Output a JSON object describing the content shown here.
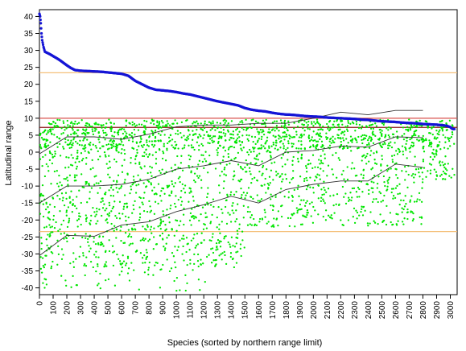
{
  "chart_data": {
    "type": "scatter",
    "xlabel": "Species (sorted by northern range limit)",
    "ylabel": "Latitudinal range",
    "xlim": [
      0,
      3050
    ],
    "ylim": [
      -42,
      42
    ],
    "x_ticks": [
      0,
      100,
      200,
      300,
      400,
      500,
      600,
      700,
      800,
      900,
      1000,
      1100,
      1200,
      1300,
      1400,
      1500,
      1600,
      1700,
      1800,
      1900,
      2000,
      2100,
      2200,
      2300,
      2400,
      2500,
      2600,
      2700,
      2800,
      2900,
      3000
    ],
    "y_ticks": [
      -40,
      -35,
      -30,
      -25,
      -20,
      -15,
      -10,
      -5,
      0,
      5,
      10,
      15,
      20,
      25,
      30,
      35,
      40
    ],
    "reference_lines": [
      {
        "y": 23.4,
        "color": "#f5c07a"
      },
      {
        "y": -23.4,
        "color": "#f5c07a"
      },
      {
        "y": 10,
        "color": "#d9534f"
      },
      {
        "y": 7.3,
        "color": "#8b1a1a"
      }
    ],
    "series": [
      {
        "color": "#1515d6",
        "kind": "northern-limit",
        "points": [
          [
            0,
            40.8
          ],
          [
            5,
            40
          ],
          [
            10,
            38
          ],
          [
            15,
            35
          ],
          [
            20,
            33
          ],
          [
            30,
            31
          ],
          [
            40,
            29.6
          ],
          [
            60,
            29.2
          ],
          [
            80,
            28.8
          ],
          [
            100,
            28.3
          ],
          [
            130,
            27.6
          ],
          [
            160,
            26.8
          ],
          [
            200,
            25.6
          ],
          [
            230,
            24.8
          ],
          [
            260,
            24.2
          ],
          [
            300,
            24
          ],
          [
            350,
            23.9
          ],
          [
            400,
            23.8
          ],
          [
            450,
            23.7
          ],
          [
            500,
            23.5
          ],
          [
            550,
            23.3
          ],
          [
            600,
            23.1
          ],
          [
            650,
            22.5
          ],
          [
            700,
            21
          ],
          [
            750,
            20
          ],
          [
            800,
            19
          ],
          [
            850,
            18.4
          ],
          [
            900,
            18.2
          ],
          [
            950,
            18
          ],
          [
            1000,
            17.7
          ],
          [
            1050,
            17.3
          ],
          [
            1100,
            17
          ],
          [
            1150,
            16.5
          ],
          [
            1200,
            16
          ],
          [
            1250,
            15.5
          ],
          [
            1300,
            15
          ],
          [
            1350,
            14.6
          ],
          [
            1400,
            14.2
          ],
          [
            1450,
            13.8
          ],
          [
            1500,
            13
          ],
          [
            1550,
            12.5
          ],
          [
            1600,
            12.2
          ],
          [
            1650,
            12
          ],
          [
            1700,
            11.6
          ],
          [
            1750,
            11.3
          ],
          [
            1800,
            11.1
          ],
          [
            1850,
            11
          ],
          [
            1900,
            10.8
          ],
          [
            1950,
            10.6
          ],
          [
            2000,
            10.5
          ],
          [
            2050,
            10.4
          ],
          [
            2100,
            10.2
          ],
          [
            2150,
            10.1
          ],
          [
            2200,
            10
          ],
          [
            2250,
            9.9
          ],
          [
            2300,
            9.8
          ],
          [
            2350,
            9.6
          ],
          [
            2400,
            9.5
          ],
          [
            2450,
            9.3
          ],
          [
            2500,
            9.1
          ],
          [
            2550,
            9
          ],
          [
            2600,
            8.9
          ],
          [
            2650,
            8.7
          ],
          [
            2700,
            8.6
          ],
          [
            2750,
            8.5
          ],
          [
            2800,
            8.3
          ],
          [
            2850,
            8.2
          ],
          [
            2900,
            8.1
          ],
          [
            2950,
            7.9
          ],
          [
            2980,
            7.7
          ],
          [
            3000,
            7.4
          ],
          [
            3010,
            7
          ],
          [
            3020,
            6.8
          ],
          [
            3030,
            6.8
          ]
        ]
      },
      {
        "color": "#00e600",
        "kind": "southern-limits-scatter",
        "bands": [
          {
            "from": 0,
            "to": 3030,
            "ymin": 1,
            "ymax": 9.6,
            "weight": 0.42
          },
          {
            "from": 0,
            "to": 3030,
            "ymin": -8,
            "ymax": 1,
            "weight": 0.18
          },
          {
            "from": 0,
            "to": 2800,
            "ymin": -22,
            "ymax": -8,
            "weight": 0.26
          },
          {
            "from": 0,
            "to": 1500,
            "ymin": -34,
            "ymax": -22,
            "weight": 0.12
          },
          {
            "from": 0,
            "to": 1300,
            "ymin": -41,
            "ymax": -34,
            "weight": 0.02
          }
        ]
      },
      {
        "color": "#333333",
        "kind": "quantile-lines",
        "lines": [
          [
            [
              0,
              -0.5
            ],
            [
              200,
              4.5
            ],
            [
              400,
              4.5
            ],
            [
              600,
              3.8
            ],
            [
              800,
              5.3
            ],
            [
              1000,
              7.5
            ],
            [
              1200,
              8
            ],
            [
              1400,
              8
            ],
            [
              1600,
              8.5
            ],
            [
              1800,
              8.5
            ],
            [
              2000,
              10
            ],
            [
              2200,
              11.8
            ],
            [
              2400,
              11
            ],
            [
              2600,
              12.3
            ],
            [
              2800,
              12.3
            ]
          ],
          [
            [
              0,
              -15
            ],
            [
              200,
              -10
            ],
            [
              400,
              -10
            ],
            [
              600,
              -9.5
            ],
            [
              800,
              -8
            ],
            [
              1000,
              -5
            ],
            [
              1200,
              -4
            ],
            [
              1400,
              -2.5
            ],
            [
              1600,
              -4
            ],
            [
              1800,
              0
            ],
            [
              2000,
              0.5
            ],
            [
              2200,
              1.8
            ],
            [
              2400,
              1.5
            ],
            [
              2600,
              4.5
            ],
            [
              2800,
              4.3
            ]
          ],
          [
            [
              0,
              -30.5
            ],
            [
              200,
              -24.5
            ],
            [
              400,
              -24.8
            ],
            [
              600,
              -21.5
            ],
            [
              800,
              -20.5
            ],
            [
              1000,
              -17.5
            ],
            [
              1200,
              -15.5
            ],
            [
              1400,
              -13
            ],
            [
              1600,
              -15
            ],
            [
              1800,
              -11
            ],
            [
              2000,
              -9.5
            ],
            [
              2200,
              -8.5
            ],
            [
              2400,
              -8.5
            ],
            [
              2600,
              -3.5
            ],
            [
              2800,
              -4.5
            ]
          ]
        ]
      }
    ]
  }
}
